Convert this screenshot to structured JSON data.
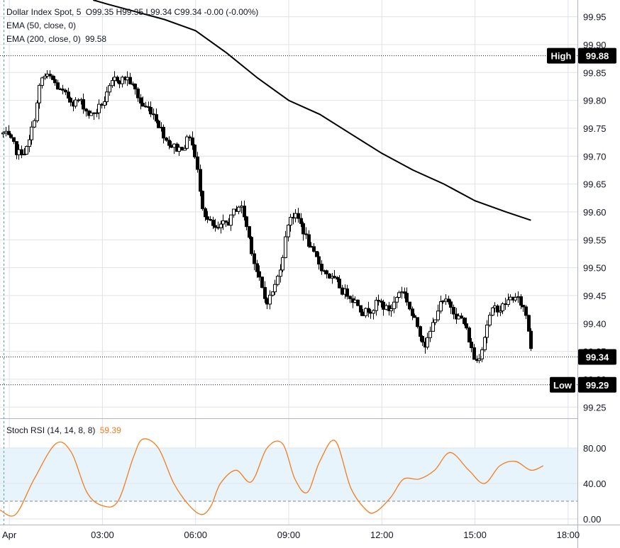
{
  "legend": {
    "symbol": "Dollar Index Spot, 5",
    "ohlc": "O99.35  H99.35  L99.34  C99.34  -0.00 (-0.00%)",
    "ema50": "EMA (50, close, 0)",
    "ema200": "EMA (200, close, 0)",
    "ema200_value": "99.58"
  },
  "price_tags": {
    "high_label": "High",
    "high_value": "99.88",
    "last_value": "99.34",
    "low_label": "Low",
    "low_value": "99.29"
  },
  "stoch": {
    "label": "Stoch RSI (14, 14, 8, 8)",
    "value": "59.39"
  },
  "colors": {
    "text": "#131722",
    "grid": "#dfe2e7",
    "ema200": "#000000",
    "stoch_line": "#f57c1f",
    "stoch_band": "#e8f4fc",
    "tag_bg": "#000000",
    "tag_text": "#ffffff"
  },
  "chart_data": [
    {
      "type": "candlestick",
      "title": "",
      "y_range": [
        99.23,
        99.98
      ],
      "y_ticks": [
        "99.95",
        "99.90",
        "99.85",
        "99.80",
        "99.75",
        "99.70",
        "99.65",
        "99.60",
        "99.55",
        "99.50",
        "99.45",
        "99.40",
        "99.35",
        "99.30",
        "99.25"
      ],
      "x_tick_labels": [
        "Apr",
        "03:00",
        "06:00",
        "09:00",
        "12:00",
        "15:00",
        "18:00"
      ],
      "x_range_hours": [
        -0.3,
        18.3
      ],
      "x_tick_hours": [
        0,
        3,
        6,
        9,
        12,
        15,
        18
      ],
      "high": 99.88,
      "low": 99.29,
      "last": 99.34,
      "grid": true,
      "ema200": {
        "x_hours": [
          2.7,
          3.2,
          4.0,
          5.0,
          6.0,
          7.0,
          8.0,
          9.0,
          10.0,
          11.0,
          12.0,
          13.0,
          14.0,
          15.0,
          16.0,
          16.8
        ],
        "values": [
          99.98,
          99.972,
          99.96,
          99.945,
          99.925,
          99.885,
          99.84,
          99.8,
          99.775,
          99.74,
          99.705,
          99.675,
          99.65,
          99.62,
          99.6,
          99.585
        ]
      },
      "candle_path_hours": [
        -0.2,
        0.2,
        0.6,
        1.0,
        1.4,
        1.8,
        2.2,
        2.6,
        3.0,
        3.4,
        3.8,
        4.2,
        4.6,
        5.0,
        5.4,
        5.8,
        6.2,
        6.6,
        7.0,
        7.4,
        7.8,
        8.2,
        8.6,
        9.0,
        9.4,
        9.8,
        10.2,
        10.6,
        11.0,
        11.4,
        11.8,
        12.2,
        12.6,
        13.0,
        13.4,
        13.8,
        14.2,
        14.6,
        15.0,
        15.4,
        15.8,
        16.2,
        16.6,
        16.8
      ],
      "candle_path_values": [
        99.74,
        99.7,
        99.72,
        99.85,
        99.83,
        99.8,
        99.8,
        99.77,
        99.8,
        99.84,
        99.84,
        99.79,
        99.78,
        99.73,
        99.71,
        99.74,
        99.6,
        99.56,
        99.58,
        99.62,
        99.52,
        99.43,
        99.48,
        99.61,
        99.57,
        99.51,
        99.49,
        99.46,
        99.45,
        99.42,
        99.44,
        99.42,
        99.47,
        99.4,
        99.36,
        99.44,
        99.43,
        99.4,
        99.32,
        99.42,
        99.43,
        99.45,
        99.42,
        99.34
      ]
    },
    {
      "type": "line",
      "title": "Stoch RSI (14, 14, 8, 8)",
      "y_range": [
        0,
        100
      ],
      "y_ticks": [
        "80.00",
        "40.00",
        "0.00"
      ],
      "band": [
        20,
        80
      ],
      "series": [
        {
          "x_hours": [
            -0.3,
            0.2,
            0.8,
            1.5,
            2.0,
            2.5,
            3.0,
            3.5,
            4.0,
            4.3,
            4.8,
            5.3,
            5.8,
            6.2,
            6.5,
            6.8,
            7.3,
            7.8,
            8.3,
            8.8,
            9.2,
            9.6,
            10.0,
            10.5,
            11.0,
            11.5,
            11.8,
            12.3,
            12.7,
            13.2,
            13.7,
            14.2,
            14.8,
            15.3,
            15.8,
            16.3,
            16.8,
            17.2
          ],
          "values": [
            10,
            5,
            45,
            85,
            75,
            30,
            15,
            20,
            70,
            90,
            80,
            40,
            15,
            5,
            15,
            40,
            55,
            42,
            80,
            85,
            45,
            30,
            65,
            88,
            35,
            10,
            8,
            25,
            45,
            45,
            55,
            75,
            55,
            40,
            60,
            65,
            55,
            60
          ]
        }
      ]
    }
  ]
}
